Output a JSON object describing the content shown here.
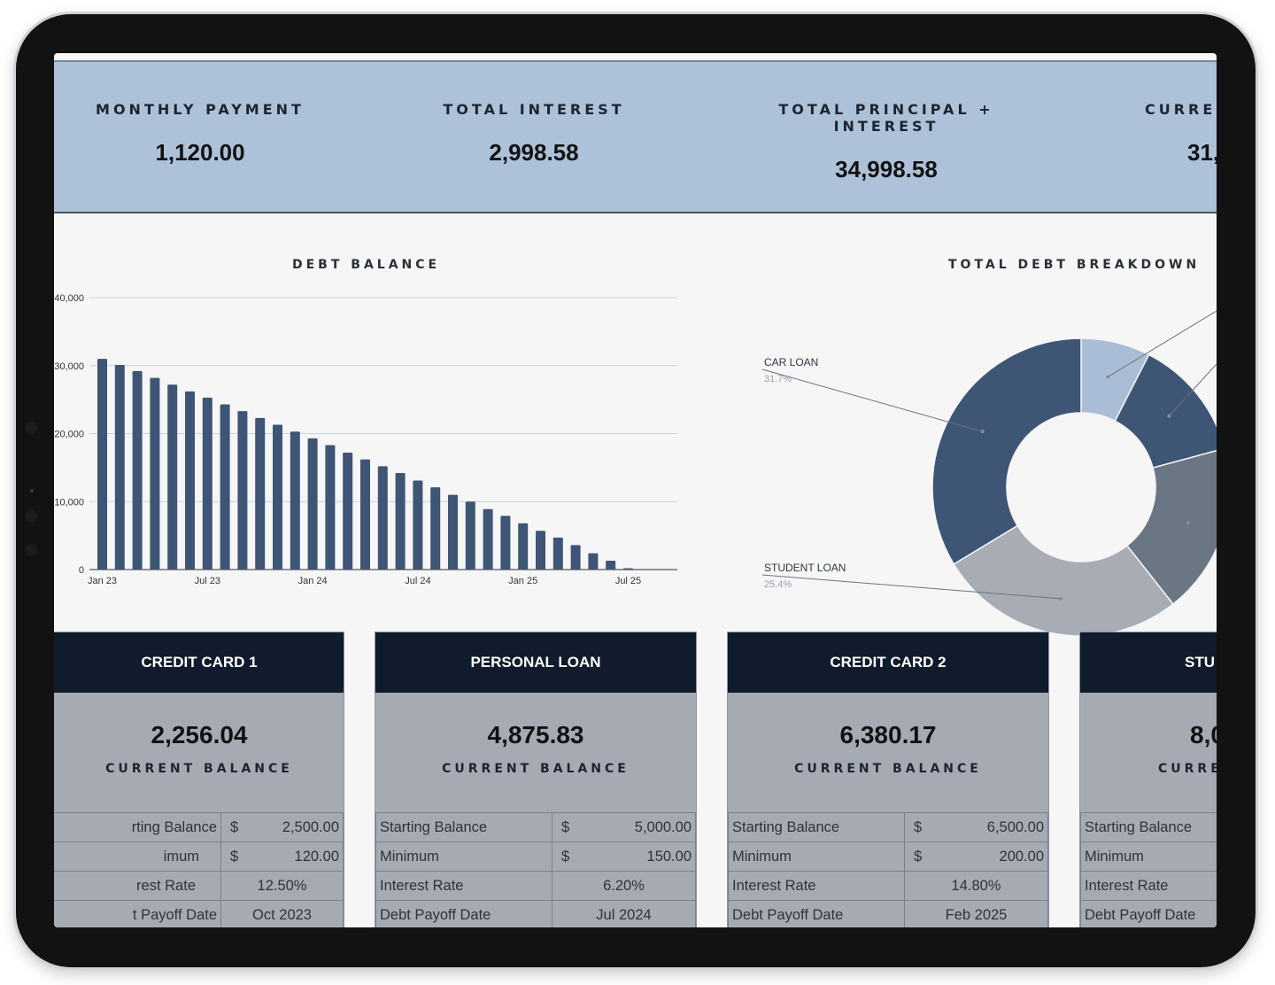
{
  "kpis": [
    {
      "label": "MONTHLY PAYMENT",
      "value": "1,120.00"
    },
    {
      "label": "TOTAL INTEREST",
      "value": "2,998.58"
    },
    {
      "label": "TOTAL PRINCIPAL + INTEREST",
      "value": "34,998.58"
    },
    {
      "label": "CURREN",
      "value": "31,"
    }
  ],
  "charts": {
    "debt_title": "DEBT BALANCE",
    "breakdown_title": "TOTAL DEBT BREAKDOWN"
  },
  "chart_data": [
    {
      "type": "bar",
      "title": "DEBT BALANCE",
      "ylim": [
        0,
        40000
      ],
      "y_ticks": [
        "0",
        "10,000",
        "20,000",
        "30,000",
        "40,000"
      ],
      "y_tick_labels_visible": [
        "0",
        "10,000",
        "20,000",
        "30,000",
        "40,000"
      ],
      "x_tick_labels": [
        "Jan 23",
        "Jul 23",
        "Jan 24",
        "Jul 24",
        "Jan 25",
        "Jul 25"
      ],
      "x_tick_positions": [
        0,
        6,
        12,
        18,
        24,
        30
      ],
      "values": [
        31000,
        30100,
        29200,
        28200,
        27200,
        26200,
        25300,
        24300,
        23300,
        22300,
        21300,
        20300,
        19300,
        18300,
        17200,
        16200,
        15200,
        14200,
        13100,
        12100,
        11000,
        10000,
        8900,
        7900,
        6800,
        5700,
        4700,
        3600,
        2400,
        1300,
        200
      ],
      "color": "#3e5575",
      "grid": true
    },
    {
      "type": "pie",
      "title": "TOTAL DEBT BREAKDOWN",
      "donut": true,
      "slices": [
        {
          "label": "",
          "value": 7.1,
          "color": "#a9bdd6"
        },
        {
          "label": "",
          "value": 12.5,
          "color": "#3e5575"
        },
        {
          "label": "",
          "value": 17.5,
          "color": "#6b7684"
        },
        {
          "label": "STUDENT LOAN",
          "pct": "25.4%",
          "value": 25.4,
          "color": "#a8acb4"
        },
        {
          "label": "CAR LOAN",
          "pct": "31.7%",
          "value": 31.7,
          "color": "#3e5575"
        }
      ]
    }
  ],
  "cards": [
    {
      "title": "CREDIT CARD 1",
      "amount": "2,256.04",
      "caption": "CURRENT BALANCE",
      "rows": [
        {
          "label": "rting Balance",
          "cur": "$",
          "value": "2,500.00"
        },
        {
          "label": "imum",
          "cur": "$",
          "value": "120.00"
        },
        {
          "label": "rest Rate",
          "cur": "",
          "value": "12.50%"
        },
        {
          "label": "t Payoff Date",
          "cur": "",
          "value": "Oct 2023"
        }
      ]
    },
    {
      "title": "PERSONAL LOAN",
      "amount": "4,875.83",
      "caption": "CURRENT BALANCE",
      "rows": [
        {
          "label": "Starting Balance",
          "cur": "$",
          "value": "5,000.00"
        },
        {
          "label": "Minimum",
          "cur": "$",
          "value": "150.00"
        },
        {
          "label": "Interest Rate",
          "cur": "",
          "value": "6.20%"
        },
        {
          "label": "Debt Payoff Date",
          "cur": "",
          "value": "Jul 2024"
        }
      ]
    },
    {
      "title": "CREDIT CARD 2",
      "amount": "6,380.17",
      "caption": "CURRENT BALANCE",
      "rows": [
        {
          "label": "Starting Balance",
          "cur": "$",
          "value": "6,500.00"
        },
        {
          "label": "Minimum",
          "cur": "$",
          "value": "200.00"
        },
        {
          "label": "Interest Rate",
          "cur": "",
          "value": "14.80%"
        },
        {
          "label": "Debt Payoff Date",
          "cur": "",
          "value": "Feb 2025"
        }
      ]
    },
    {
      "title": "STU",
      "amount": "8,0",
      "caption": "CURRE",
      "rows": [
        {
          "label": "Starting Balance",
          "cur": "",
          "value": ""
        },
        {
          "label": "Minimum",
          "cur": "",
          "value": ""
        },
        {
          "label": "Interest Rate",
          "cur": "",
          "value": ""
        },
        {
          "label": "Debt Payoff Date",
          "cur": "",
          "value": ""
        }
      ]
    }
  ]
}
